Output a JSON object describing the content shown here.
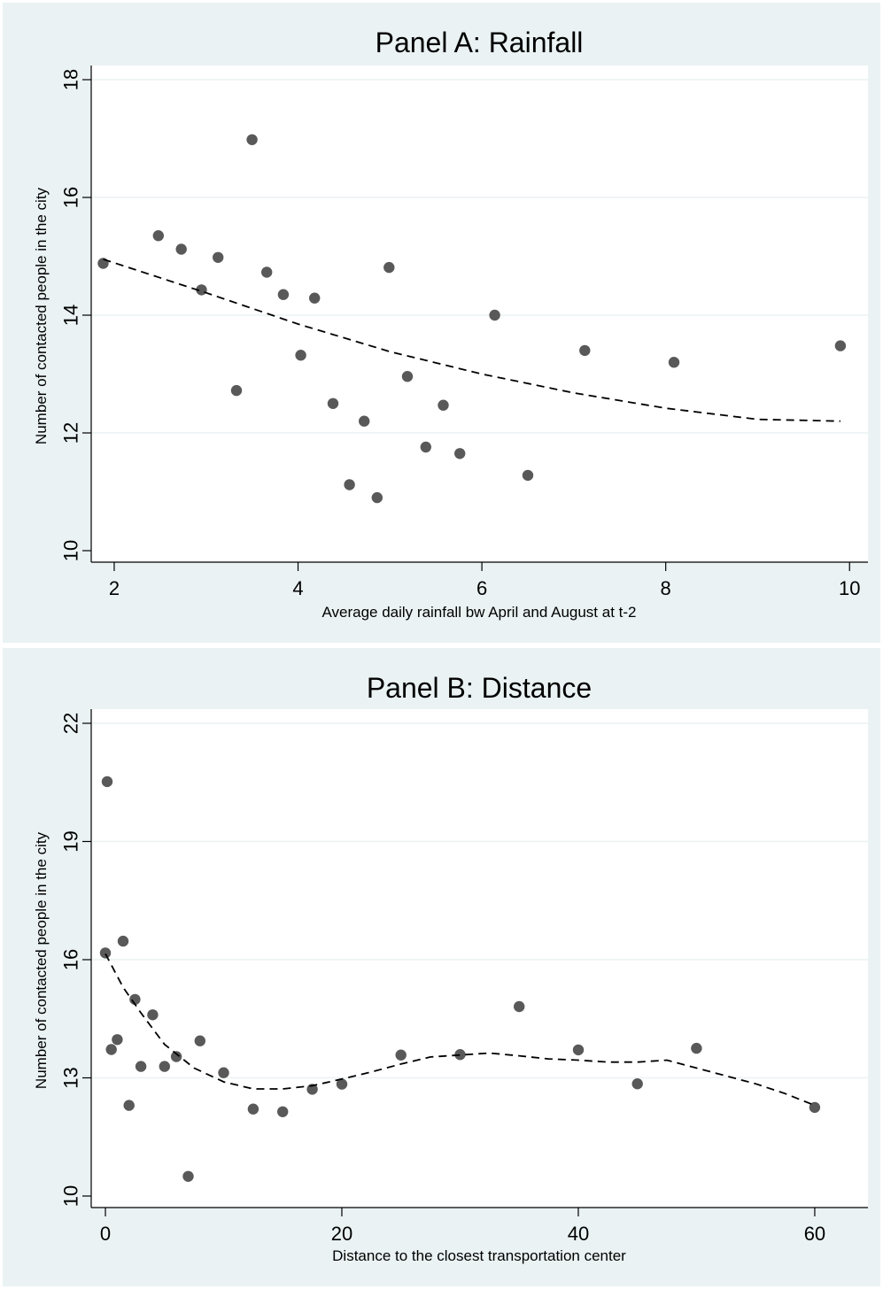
{
  "chart_data": [
    {
      "type": "scatter",
      "title": "Panel A: Rainfall",
      "xlabel": "Average daily rainfall bw April and August at t-2",
      "ylabel": "Number of contacted people in the city",
      "xlim": [
        1.75,
        10.2
      ],
      "ylim": [
        10,
        18
      ],
      "xticks": [
        2,
        4,
        6,
        8,
        10
      ],
      "yticks": [
        10,
        12,
        14,
        16,
        18
      ],
      "grid": "horizontal",
      "series": [
        {
          "type": "scatter",
          "x": [
            1.88,
            2.48,
            2.73,
            2.95,
            3.13,
            3.33,
            3.5,
            3.66,
            3.84,
            4.03,
            4.18,
            4.38,
            4.56,
            4.72,
            4.86,
            4.99,
            5.19,
            5.39,
            5.58,
            5.76,
            6.14,
            6.5,
            7.12,
            8.09,
            9.9
          ],
          "y": [
            14.88,
            15.35,
            15.12,
            14.43,
            14.98,
            12.72,
            16.98,
            14.73,
            14.35,
            13.32,
            14.29,
            12.5,
            11.12,
            12.2,
            10.9,
            14.81,
            12.96,
            11.76,
            12.47,
            11.65,
            14.0,
            11.28,
            13.4,
            13.2,
            13.48
          ]
        },
        {
          "type": "line",
          "style": "dashed",
          "x": [
            1.88,
            3,
            4,
            5,
            6,
            7,
            8,
            9,
            9.9
          ],
          "y": [
            14.95,
            14.38,
            13.85,
            13.38,
            13.0,
            12.68,
            12.42,
            12.23,
            12.2
          ]
        }
      ]
    },
    {
      "type": "scatter",
      "title": "Panel B: Distance",
      "xlabel": "Distance to the closest transportation center",
      "ylabel": "Number of contacted people in the city",
      "xlim": [
        -1.2,
        64.5
      ],
      "ylim": [
        10,
        22
      ],
      "xticks": [
        0,
        20,
        40,
        60
      ],
      "yticks": [
        10,
        13,
        16,
        19,
        22
      ],
      "grid": "horizontal",
      "series": [
        {
          "type": "scatter",
          "x": [
            0,
            0.15,
            0.5,
            1,
            1.5,
            2,
            2.5,
            3,
            4,
            5,
            6,
            7,
            8,
            10,
            12.5,
            15,
            17.5,
            20,
            25,
            30,
            35,
            40,
            45,
            50,
            60
          ],
          "y": [
            16.17,
            20.52,
            13.72,
            13.97,
            16.47,
            12.3,
            14.99,
            13.29,
            14.6,
            13.29,
            13.54,
            10.5,
            13.94,
            13.13,
            12.21,
            12.14,
            12.71,
            12.84,
            13.58,
            13.59,
            14.81,
            13.71,
            12.85,
            13.75,
            12.25
          ]
        },
        {
          "type": "line",
          "style": "dashed",
          "x": [
            0,
            1.5,
            3,
            5,
            7.5,
            10,
            12.5,
            15,
            17.5,
            20,
            22.5,
            25,
            27.5,
            30,
            32.5,
            35,
            37.5,
            40,
            42.5,
            45,
            47.5,
            50,
            52.5,
            55,
            57.5,
            60
          ],
          "y": [
            16.15,
            15.3,
            14.65,
            13.85,
            13.25,
            12.9,
            12.72,
            12.72,
            12.8,
            12.97,
            13.15,
            13.35,
            13.53,
            13.58,
            13.63,
            13.56,
            13.48,
            13.45,
            13.4,
            13.4,
            13.45,
            13.25,
            13.05,
            12.85,
            12.6,
            12.3
          ]
        }
      ]
    }
  ]
}
